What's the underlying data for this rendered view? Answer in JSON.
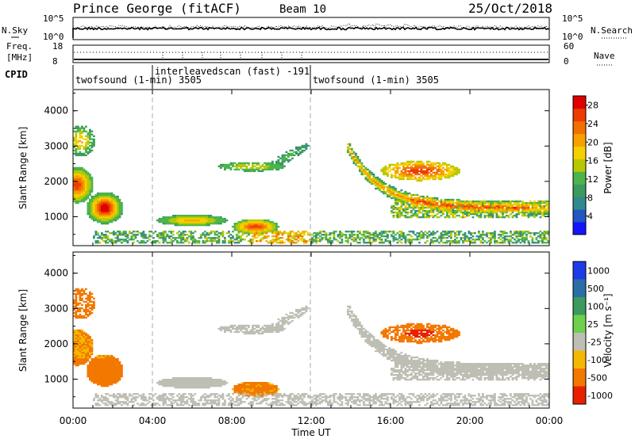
{
  "header": {
    "station": "Prince George (fitACF)",
    "beam": "Beam 10",
    "date": "25/Oct/2018"
  },
  "top_strip": {
    "nsky_label": "N.Sky",
    "nsearch_label": "N.Search",
    "left_ticks": [
      "10^5",
      "10^0"
    ],
    "right_ticks": [
      "10^5",
      "10^0"
    ],
    "freq_label": "Freq.",
    "freq_unit": "[MHz]",
    "freq_ticks": [
      "18",
      "8"
    ],
    "nave_label": "Nave",
    "nave_ticks": [
      "60",
      "0"
    ],
    "cpid_label": "CPID",
    "cpid_entries": [
      "twofsound (1-min) 3505",
      "interleavedscan (fast) -191",
      "twofsound (1-min) 3505"
    ]
  },
  "chart_data": [
    {
      "type": "heatmap",
      "xlabel": "",
      "ylabel": "Slant Range [km]",
      "xlim": [
        0,
        24
      ],
      "ylim": [
        180,
        4600
      ],
      "yticks": [
        "4000",
        "3000",
        "2000",
        "1000"
      ],
      "yvalues": [
        4000,
        3000,
        2000,
        1000
      ],
      "colorbar": {
        "label": "Power [dB]",
        "ticks": [
          "28",
          "24",
          "20",
          "16",
          "12",
          "8",
          "4"
        ],
        "values": [
          28,
          24,
          20,
          16,
          12,
          8,
          4
        ],
        "range": [
          0,
          30
        ],
        "colors": [
          "#1414ff",
          "#2256c0",
          "#2e8a8e",
          "#3c9a5e",
          "#4cb44c",
          "#b8c800",
          "#f5d000",
          "#f7a000",
          "#f27000",
          "#ee3c00",
          "#e00000"
        ]
      }
    },
    {
      "type": "heatmap",
      "xlabel": "Time UT",
      "ylabel": "Slant Range [km]",
      "xlim": [
        0,
        24
      ],
      "ylim": [
        180,
        4600
      ],
      "xticks": [
        "00:00",
        "04:00",
        "08:00",
        "12:00",
        "16:00",
        "20:00",
        "00:00"
      ],
      "xvalues": [
        0,
        4,
        8,
        12,
        16,
        20,
        24
      ],
      "yticks": [
        "4000",
        "3000",
        "2000",
        "1000"
      ],
      "yvalues": [
        4000,
        3000,
        2000,
        1000
      ],
      "colorbar": {
        "label": "Velocity [m s⁻¹]",
        "ticks": [
          "1000",
          "500",
          "100",
          "25",
          "-25",
          "-100",
          "-500",
          "-1000"
        ],
        "values": [
          1000,
          500,
          100,
          25,
          -25,
          -100,
          -500,
          -1000
        ],
        "colors": [
          "#1e3ce6",
          "#2a6ea8",
          "#3c9a5e",
          "#6ed04c",
          "#bebeb4",
          "#f5b800",
          "#f27800",
          "#e82000"
        ]
      }
    }
  ],
  "colors": {
    "ground_scatter": "#bebeb4",
    "axis": "#000000",
    "dashed_marker": "#aaaaaa"
  }
}
